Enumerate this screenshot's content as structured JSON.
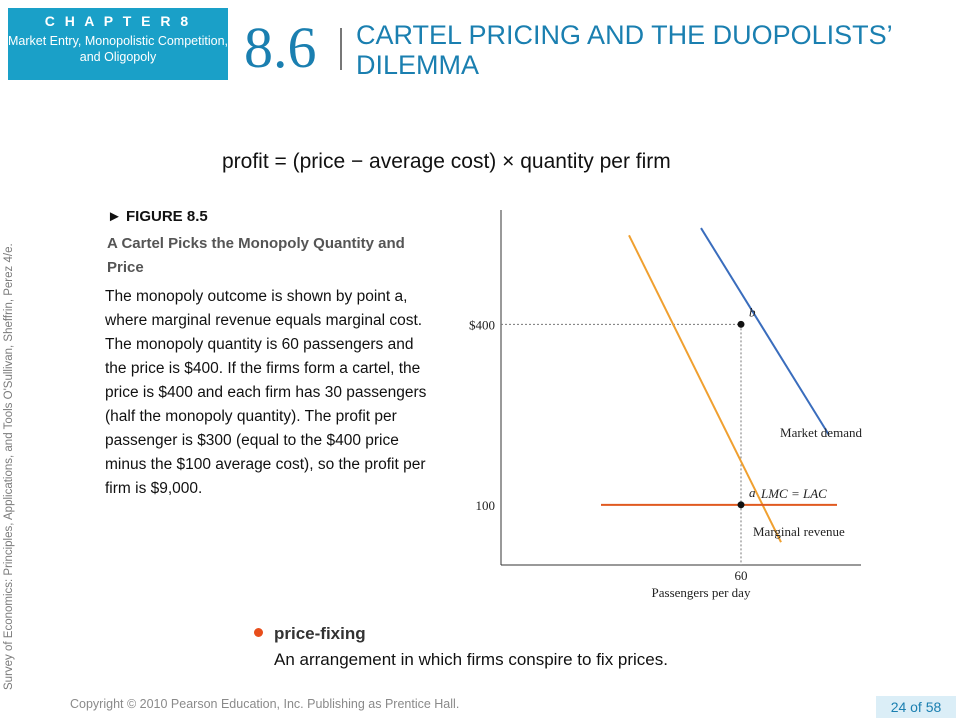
{
  "header": {
    "chapter_label": "C H A P T E R   8",
    "chapter_subtitle": "Market Entry, Monopolistic Competition, and Oligopoly",
    "section_number": "8.6",
    "section_title": "CARTEL PRICING AND THE DUOPOLISTS’ DILEMMA"
  },
  "sidebar_text": "Survey of Economics: Principles, Applications, and Tools    O'Sullivan, Sheffrin, Perez   4/e.",
  "formula": "profit = (price − average cost) × quantity per firm",
  "figure": {
    "label": "FIGURE 8.5",
    "title": "A Cartel Picks the Monopoly Quantity and Price",
    "description": "The monopoly outcome is shown by point a, where marginal revenue equals marginal cost. The monopoly quantity is 60 passengers and the price is $400. If the firms form a cartel, the price is $400 and each firm has 30 passengers (half the monopoly quantity). The profit per passenger is $300 (equal to the $400 price minus the $100 average cost), so the profit per  firm is $9,000."
  },
  "chart_data": {
    "type": "line",
    "xlabel": "Passengers per day",
    "ylabel": "",
    "x_ticks": [
      {
        "value": 60,
        "label": "60"
      }
    ],
    "y_ticks": [
      {
        "value": 400,
        "label": "$400"
      },
      {
        "value": 100,
        "label": "100"
      }
    ],
    "xlim": [
      0,
      90
    ],
    "ylim": [
      0,
      590
    ],
    "series": [
      {
        "name": "Market demand",
        "color": "#3a6dbd",
        "points": [
          [
            50,
            560
          ],
          [
            82,
            216
          ]
        ]
      },
      {
        "name": "Marginal revenue",
        "color": "#f0a030",
        "points": [
          [
            32,
            548
          ],
          [
            70,
            38
          ]
        ]
      },
      {
        "name": "LMC = LAC",
        "color": "#e05a20",
        "points": [
          [
            25,
            100
          ],
          [
            84,
            100
          ]
        ]
      }
    ],
    "points": [
      {
        "label": "b",
        "x": 60,
        "y": 400
      },
      {
        "label": "a",
        "x": 60,
        "y": 100
      }
    ],
    "guides": [
      {
        "from": [
          0,
          400
        ],
        "to": [
          60,
          400
        ]
      },
      {
        "from": [
          60,
          400
        ],
        "to": [
          60,
          0
        ]
      }
    ]
  },
  "term": {
    "name": "price-fixing",
    "definition": "An arrangement in which firms conspire to fix prices.",
    "bullet_color": "#e84e1b"
  },
  "footer": {
    "copyright": "Copyright © 2010  Pearson Education, Inc. Publishing as Prentice Hall.",
    "page": "24 of 58"
  }
}
